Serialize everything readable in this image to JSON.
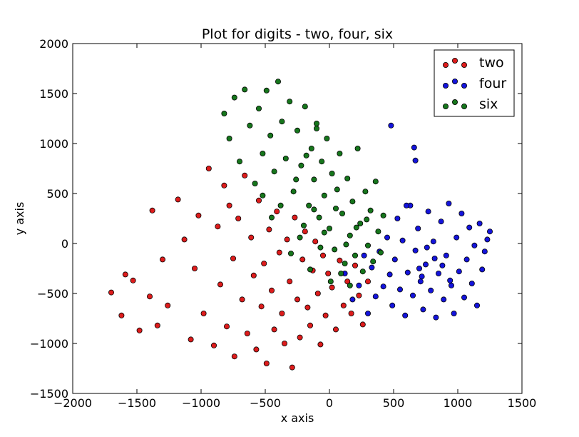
{
  "chart_data": {
    "type": "scatter",
    "title": "Plot for digits - two, four, six",
    "xlabel": "x axis",
    "ylabel": "y axis",
    "xlim": [
      -2000,
      1500
    ],
    "ylim": [
      -1500,
      2000
    ],
    "xticks": [
      -2000,
      -1500,
      -1000,
      -500,
      0,
      500,
      1000,
      1500
    ],
    "yticks": [
      -1500,
      -1000,
      -500,
      0,
      500,
      1000,
      1500,
      2000
    ],
    "grid": false,
    "legend_position": "top-right",
    "series": [
      {
        "name": "two",
        "color": "#dd1c1c",
        "points": [
          [
            -1700,
            -490
          ],
          [
            -1620,
            -720
          ],
          [
            -1590,
            -310
          ],
          [
            -1530,
            -370
          ],
          [
            -1480,
            -870
          ],
          [
            -1400,
            -530
          ],
          [
            -1380,
            330
          ],
          [
            -1340,
            -820
          ],
          [
            -1300,
            -160
          ],
          [
            -1260,
            -620
          ],
          [
            -1180,
            440
          ],
          [
            -1130,
            40
          ],
          [
            -1080,
            -960
          ],
          [
            -1050,
            -250
          ],
          [
            -1020,
            280
          ],
          [
            -980,
            -700
          ],
          [
            -940,
            750
          ],
          [
            -900,
            -1020
          ],
          [
            -870,
            170
          ],
          [
            -850,
            -410
          ],
          [
            -820,
            580
          ],
          [
            -800,
            -830
          ],
          [
            -780,
            380
          ],
          [
            -750,
            -150
          ],
          [
            -740,
            -1130
          ],
          [
            -710,
            250
          ],
          [
            -680,
            -560
          ],
          [
            -660,
            680
          ],
          [
            -640,
            -900
          ],
          [
            -610,
            60
          ],
          [
            -590,
            -320
          ],
          [
            -570,
            -1060
          ],
          [
            -550,
            430
          ],
          [
            -530,
            -630
          ],
          [
            -510,
            -200
          ],
          [
            -490,
            -1200
          ],
          [
            -470,
            140
          ],
          [
            -450,
            -470
          ],
          [
            -430,
            -860
          ],
          [
            -410,
            320
          ],
          [
            -390,
            -90
          ],
          [
            -370,
            -700
          ],
          [
            -350,
            -1000
          ],
          [
            -330,
            40
          ],
          [
            -310,
            -380
          ],
          [
            -290,
            -1240
          ],
          [
            -270,
            260
          ],
          [
            -250,
            -560
          ],
          [
            -230,
            -940
          ],
          [
            -210,
            -160
          ],
          [
            -190,
            120
          ],
          [
            -170,
            -640
          ],
          [
            -150,
            -820
          ],
          [
            -130,
            -270
          ],
          [
            -110,
            20
          ],
          [
            -90,
            -500
          ],
          [
            -70,
            -1010
          ],
          [
            -50,
            -120
          ],
          [
            -30,
            -720
          ],
          [
            -10,
            -300
          ],
          [
            20,
            -440
          ],
          [
            50,
            -860
          ],
          [
            80,
            -170
          ],
          [
            110,
            -620
          ],
          [
            140,
            -380
          ],
          [
            170,
            -700
          ],
          [
            200,
            -220
          ],
          [
            230,
            -520
          ],
          [
            260,
            -810
          ],
          [
            300,
            -380
          ]
        ]
      },
      {
        "name": "four",
        "color": "#1414dc",
        "points": [
          [
            120,
            -300
          ],
          [
            180,
            -560
          ],
          [
            230,
            -420
          ],
          [
            270,
            -120
          ],
          [
            300,
            -700
          ],
          [
            330,
            -240
          ],
          [
            360,
            -530
          ],
          [
            390,
            -80
          ],
          [
            420,
            -430
          ],
          [
            450,
            60
          ],
          [
            470,
            -310
          ],
          [
            490,
            -620
          ],
          [
            510,
            -160
          ],
          [
            530,
            250
          ],
          [
            550,
            -460
          ],
          [
            570,
            30
          ],
          [
            590,
            -720
          ],
          [
            610,
            -290
          ],
          [
            630,
            380
          ],
          [
            650,
            -520
          ],
          [
            670,
            -70
          ],
          [
            690,
            150
          ],
          [
            710,
            -380
          ],
          [
            730,
            -660
          ],
          [
            750,
            -210
          ],
          [
            770,
            320
          ],
          [
            790,
            -470
          ],
          [
            810,
            20
          ],
          [
            830,
            -740
          ],
          [
            850,
            -300
          ],
          [
            870,
            220
          ],
          [
            890,
            -560
          ],
          [
            910,
            -120
          ],
          [
            930,
            400
          ],
          [
            950,
            -420
          ],
          [
            970,
            -700
          ],
          [
            990,
            60
          ],
          [
            1010,
            -280
          ],
          [
            1030,
            300
          ],
          [
            1050,
            -540
          ],
          [
            1070,
            -160
          ],
          [
            1090,
            160
          ],
          [
            1110,
            -400
          ],
          [
            1130,
            -20
          ],
          [
            1150,
            -620
          ],
          [
            1170,
            200
          ],
          [
            1190,
            -260
          ],
          [
            1210,
            -80
          ],
          [
            1230,
            40
          ],
          [
            1250,
            120
          ],
          [
            480,
            1180
          ],
          [
            660,
            960
          ],
          [
            670,
            830
          ],
          [
            600,
            380
          ],
          [
            760,
            -40
          ],
          [
            880,
            -220
          ],
          [
            720,
            -330
          ],
          [
            940,
            -370
          ],
          [
            820,
            -150
          ],
          [
            700,
            -250
          ]
        ]
      },
      {
        "name": "six",
        "color": "#16761c",
        "points": [
          [
            -820,
            1300
          ],
          [
            -780,
            1050
          ],
          [
            -740,
            1460
          ],
          [
            -700,
            820
          ],
          [
            -660,
            1540
          ],
          [
            -620,
            1180
          ],
          [
            -580,
            600
          ],
          [
            -550,
            1350
          ],
          [
            -520,
            900
          ],
          [
            -490,
            1530
          ],
          [
            -460,
            1080
          ],
          [
            -430,
            720
          ],
          [
            -400,
            1620
          ],
          [
            -370,
            1220
          ],
          [
            -340,
            850
          ],
          [
            -310,
            1420
          ],
          [
            -280,
            520
          ],
          [
            -250,
            1130
          ],
          [
            -220,
            780
          ],
          [
            -190,
            1370
          ],
          [
            -160,
            380
          ],
          [
            -140,
            950
          ],
          [
            -120,
            640
          ],
          [
            -100,
            1200
          ],
          [
            -80,
            260
          ],
          [
            -60,
            820
          ],
          [
            -40,
            480
          ],
          [
            -20,
            1050
          ],
          [
            0,
            150
          ],
          [
            20,
            700
          ],
          [
            40,
            -60
          ],
          [
            60,
            540
          ],
          [
            80,
            900
          ],
          [
            100,
            300
          ],
          [
            120,
            -200
          ],
          [
            140,
            650
          ],
          [
            160,
            80
          ],
          [
            180,
            420
          ],
          [
            200,
            -120
          ],
          [
            220,
            950
          ],
          [
            240,
            200
          ],
          [
            260,
            -280
          ],
          [
            280,
            520
          ],
          [
            300,
            -20
          ],
          [
            320,
            330
          ],
          [
            340,
            -180
          ],
          [
            360,
            620
          ],
          [
            380,
            120
          ],
          [
            400,
            -90
          ],
          [
            420,
            280
          ],
          [
            -520,
            480
          ],
          [
            -450,
            260
          ],
          [
            -380,
            380
          ],
          [
            -300,
            -100
          ],
          [
            -230,
            60
          ],
          [
            -150,
            -260
          ],
          [
            -70,
            -40
          ],
          [
            10,
            -380
          ],
          [
            90,
            -300
          ],
          [
            160,
            -420
          ],
          [
            -200,
            180
          ],
          [
            -120,
            340
          ],
          [
            -40,
            110
          ],
          [
            50,
            350
          ],
          [
            130,
            -10
          ],
          [
            210,
            160
          ],
          [
            290,
            240
          ],
          [
            -260,
            640
          ],
          [
            -180,
            880
          ],
          [
            -100,
            1150
          ]
        ]
      }
    ]
  }
}
